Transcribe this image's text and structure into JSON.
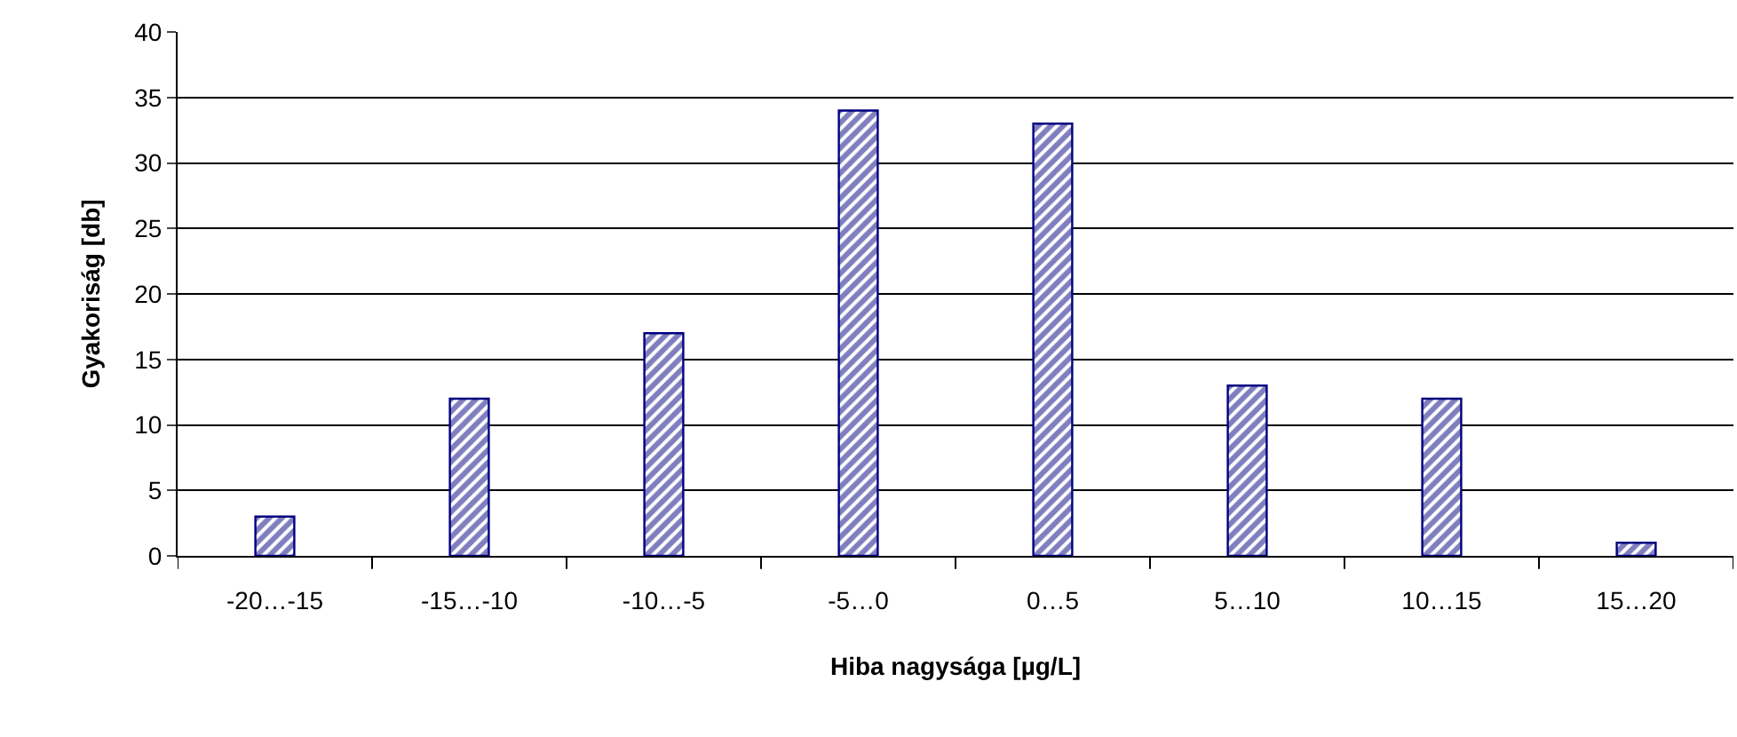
{
  "chart_data": {
    "type": "bar",
    "xlabel": "Hiba nagysága [µg/L]",
    "ylabel": "Gyakoriság [db]",
    "categories": [
      "-20…-15",
      "-15…-10",
      "-10…-5",
      "-5…0",
      "0…5",
      "5…10",
      "10…15",
      "15…20"
    ],
    "values": [
      3,
      12,
      17,
      34,
      33,
      13,
      12,
      1
    ],
    "color": "#000080",
    "ylim": [
      0,
      40
    ],
    "yticks": [
      0,
      5,
      10,
      15,
      20,
      25,
      30,
      35,
      40
    ],
    "grid": "y",
    "legend": false
  }
}
